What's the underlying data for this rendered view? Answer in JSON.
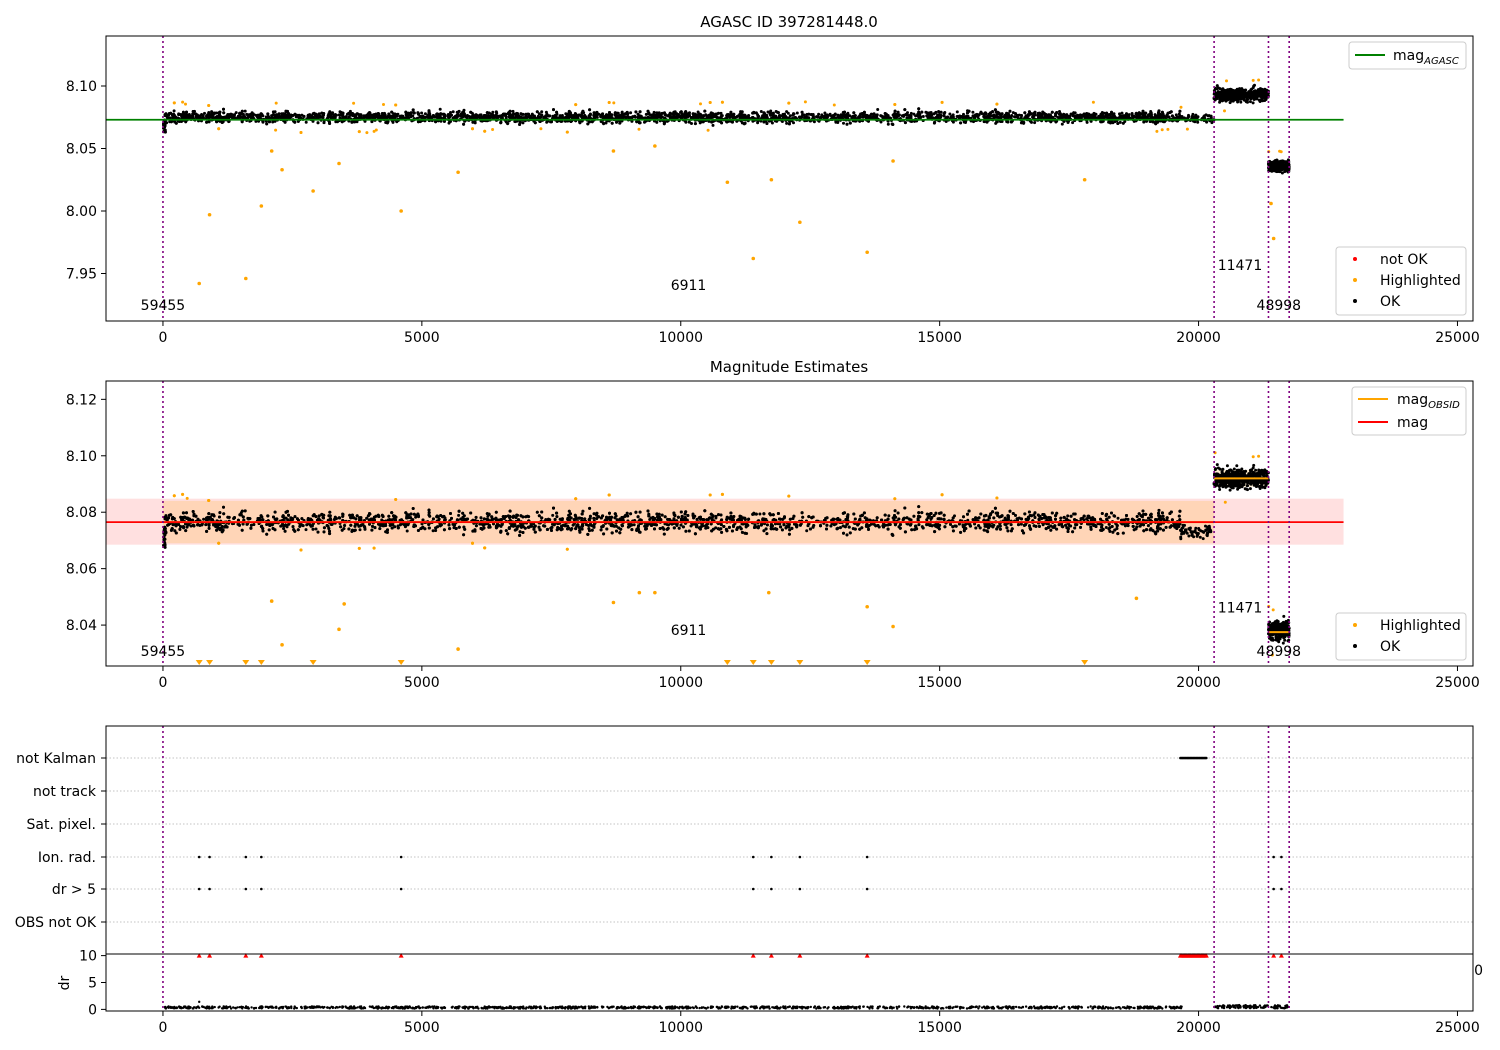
{
  "chart_data": [
    {
      "type": "scatter",
      "title": "AGASC ID 397281448.0",
      "xlim": [
        -1100,
        25300
      ],
      "ylim": [
        7.912,
        8.14
      ],
      "xticks": [
        0,
        5000,
        10000,
        15000,
        20000,
        25000
      ],
      "xtick_labels": [
        "0",
        "5000",
        "10000",
        "15000",
        "20000",
        "25000"
      ],
      "yticks": [
        7.95,
        8.0,
        8.05,
        8.1
      ],
      "ytick_labels": [
        "7.95",
        "8.00",
        "8.05",
        "8.10"
      ],
      "legend_top": {
        "position": "top-right",
        "entries": [
          {
            "label": "mag",
            "subscript": "AGASC",
            "color": "#008000"
          }
        ]
      },
      "legend_bottom": {
        "position": "bottom-right",
        "entries": [
          {
            "label": "not OK",
            "color": "#ff0000"
          },
          {
            "label": "Highlighted",
            "color": "#ffa500"
          },
          {
            "label": "OK",
            "color": "#000000"
          }
        ]
      },
      "reference_line": {
        "name": "mag_AGASC",
        "y": 8.073,
        "x_range": [
          -1100,
          22800
        ],
        "color": "#008000"
      },
      "obsid_boundaries": [
        0,
        20300,
        21350,
        21750
      ],
      "obsid_labels": [
        {
          "text": "59455",
          "x": 0,
          "y": 7.921
        },
        {
          "text": "6911",
          "x": 10150,
          "y": 7.937
        },
        {
          "text": "11471",
          "x": 20800,
          "y": 7.953
        },
        {
          "text": "48998",
          "x": 21550,
          "y": 7.921
        }
      ],
      "segments": [
        {
          "x": [
            30,
            19650
          ],
          "center": 8.075,
          "spread": 0.008
        },
        {
          "x": [
            19650,
            20300
          ],
          "center": 8.074,
          "spread": 0.006
        },
        {
          "x": [
            20300,
            21350
          ],
          "center": 8.093,
          "spread": 0.009
        },
        {
          "x": [
            21350,
            21750
          ],
          "center": 8.036,
          "spread": 0.008
        }
      ],
      "highlighted_outliers": [
        [
          700,
          7.942
        ],
        [
          900,
          7.997
        ],
        [
          1600,
          7.946
        ],
        [
          1900,
          8.004
        ],
        [
          2300,
          8.033
        ],
        [
          2900,
          8.016
        ],
        [
          3400,
          8.038
        ],
        [
          4600,
          8.0
        ],
        [
          5700,
          8.031
        ],
        [
          10900,
          8.023
        ],
        [
          11400,
          7.962
        ],
        [
          11750,
          8.025
        ],
        [
          12300,
          7.991
        ],
        [
          13600,
          7.967
        ],
        [
          14100,
          8.04
        ],
        [
          17800,
          8.025
        ],
        [
          21450,
          7.978
        ],
        [
          21400,
          8.006
        ],
        [
          2100,
          8.048
        ],
        [
          8700,
          8.048
        ],
        [
          9500,
          8.052
        ]
      ]
    },
    {
      "type": "scatter",
      "title": "Magnitude Estimates",
      "xlim": [
        -1100,
        25300
      ],
      "ylim": [
        8.0255,
        8.1265
      ],
      "xticks": [
        0,
        5000,
        10000,
        15000,
        20000,
        25000
      ],
      "xtick_labels": [
        "0",
        "5000",
        "10000",
        "15000",
        "20000",
        "25000"
      ],
      "yticks": [
        8.04,
        8.06,
        8.08,
        8.1,
        8.12
      ],
      "ytick_labels": [
        "8.04",
        "8.06",
        "8.08",
        "8.10",
        "8.12"
      ],
      "legend_top": {
        "position": "top-right",
        "entries": [
          {
            "label": "mag",
            "subscript": "OBSID",
            "color": "#ffa500"
          },
          {
            "label": "mag",
            "subscript": "",
            "color": "#ff0000"
          }
        ]
      },
      "legend_bottom": {
        "position": "bottom-right",
        "entries": [
          {
            "label": "Highlighted",
            "color": "#ffa500"
          },
          {
            "label": "OK",
            "color": "#000000"
          }
        ]
      },
      "mag_line": {
        "y": 8.0765,
        "x_range": [
          -1100,
          22800
        ],
        "band": [
          8.0685,
          8.0848
        ],
        "color": "#ff0000"
      },
      "obsid_mags": [
        {
          "x": [
            0,
            20300
          ],
          "y": 8.0765,
          "band": [
            8.069,
            8.084
          ]
        },
        {
          "x": [
            20300,
            21350
          ],
          "y": 8.092,
          "band": [
            8.089,
            8.095
          ]
        },
        {
          "x": [
            21350,
            21750
          ],
          "y": 8.0375,
          "band": [
            8.036,
            8.039
          ]
        }
      ],
      "obsid_boundaries": [
        0,
        20300,
        21350,
        21750
      ],
      "obsid_labels": [
        {
          "text": "59455",
          "x": 0,
          "y": 8.029
        },
        {
          "text": "6911",
          "x": 10150,
          "y": 8.0365
        },
        {
          "text": "11471",
          "x": 20800,
          "y": 8.0445
        },
        {
          "text": "48998",
          "x": 21550,
          "y": 8.029
        }
      ],
      "segments": [
        {
          "x": [
            30,
            19650
          ],
          "center": 8.0765,
          "spread": 0.0065
        },
        {
          "x": [
            19650,
            20300
          ],
          "center": 8.073,
          "spread": 0.004
        },
        {
          "x": [
            20300,
            21350
          ],
          "center": 8.092,
          "spread": 0.006
        },
        {
          "x": [
            21350,
            21750
          ],
          "center": 8.038,
          "spread": 0.006
        }
      ],
      "highlighted_outliers": [
        [
          2100,
          8.0485
        ],
        [
          2300,
          8.033
        ],
        [
          3400,
          8.0385
        ],
        [
          3500,
          8.0475
        ],
        [
          5700,
          8.0315
        ],
        [
          8700,
          8.048
        ],
        [
          9200,
          8.0515
        ],
        [
          9500,
          8.0515
        ],
        [
          11700,
          8.0515
        ],
        [
          13600,
          8.0465
        ],
        [
          14100,
          8.0395
        ],
        [
          18800,
          8.0495
        ]
      ],
      "offscale_markers": [
        700,
        900,
        1600,
        1900,
        2900,
        4600,
        10900,
        11400,
        11750,
        12300,
        13600,
        17800
      ]
    },
    {
      "type": "scatter",
      "title": "",
      "xlim": [
        -1100,
        25300
      ],
      "flag_rows": [
        "not Kalman",
        "not track",
        "Sat. pixel.",
        "Ion. rad.",
        "dr > 5",
        "OBS not OK"
      ],
      "flags": {
        "not Kalman": [
          [
            19650,
            20150
          ]
        ],
        "Ion. rad.": [
          700,
          900,
          1600,
          1900,
          4600,
          11400,
          11750,
          12300,
          13600,
          21450,
          21600
        ],
        "dr > 5": [
          700,
          900,
          1600,
          1900,
          4600,
          11400,
          11750,
          12300,
          13600,
          21450,
          21600
        ]
      },
      "dr_ylim": [
        -0.3,
        10.3
      ],
      "dr_yticks": [
        0,
        5,
        10
      ],
      "dr_ytick_labels": [
        "0",
        "5",
        "10"
      ],
      "dr_ylabel": "dr",
      "dr_clipped_points": [
        700,
        900,
        1600,
        1900,
        4600,
        11400,
        11750,
        12300,
        13600,
        21450,
        21600
      ],
      "dr_clipped_range": [
        19650,
        20150
      ],
      "stray_tick_label": "0",
      "xticks": [
        0,
        5000,
        10000,
        15000,
        20000,
        25000
      ],
      "xtick_labels": [
        "0",
        "5000",
        "10000",
        "15000",
        "20000",
        "25000"
      ],
      "obsid_boundaries": [
        0,
        20300,
        21350,
        21750
      ]
    }
  ]
}
